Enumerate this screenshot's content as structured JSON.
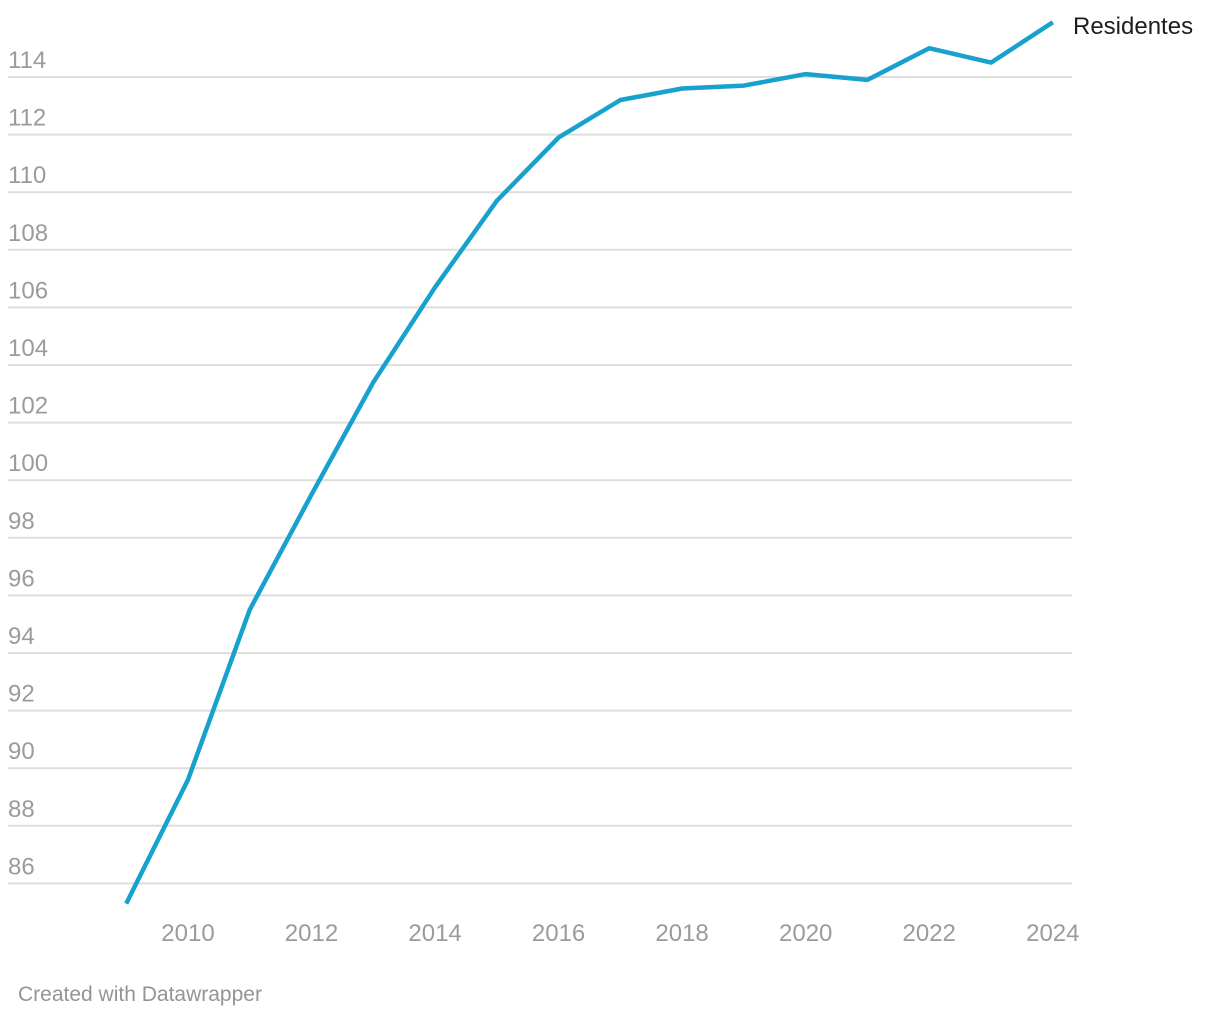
{
  "chart_data": {
    "type": "line",
    "title": "",
    "xlabel": "",
    "ylabel": "",
    "series": [
      {
        "name": "Residentes",
        "x": [
          2009,
          2010,
          2011,
          2012,
          2013,
          2014,
          2015,
          2016,
          2017,
          2018,
          2019,
          2020,
          2021,
          2022,
          2023,
          2024
        ],
        "values": [
          85.3,
          89.6,
          95.5,
          99.5,
          103.4,
          106.7,
          109.7,
          111.9,
          113.2,
          113.6,
          113.7,
          114.1,
          113.9,
          115.0,
          114.5,
          115.9
        ]
      }
    ],
    "x_ticks": [
      "2010",
      "2012",
      "2014",
      "2016",
      "2018",
      "2020",
      "2022",
      "2024"
    ],
    "y_ticks": [
      "86",
      "88",
      "90",
      "92",
      "94",
      "96",
      "98",
      "100",
      "102",
      "104",
      "106",
      "108",
      "110",
      "112",
      "114"
    ],
    "xlim": [
      2009,
      2024
    ],
    "ylim": [
      85.0,
      116.2
    ],
    "grid": "horizontal-only",
    "legend_position": "line-end-label",
    "line_color": "#18a1cd",
    "grid_color": "#dedede",
    "tick_color": "#9b9b9b",
    "series_label_color": "#1d1d1d"
  },
  "footer": {
    "attribution": "Created with Datawrapper"
  }
}
